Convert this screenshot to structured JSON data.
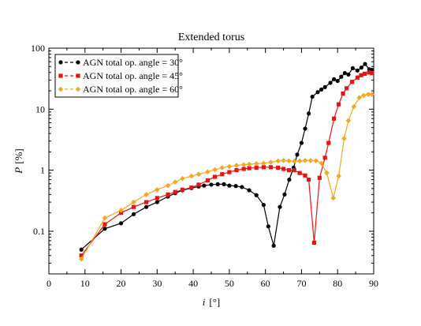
{
  "chart_data": {
    "type": "line",
    "title": "Extended torus",
    "xlabel_italic": "i",
    "xlabel_unit": "[°]",
    "ylabel_italic": "P",
    "ylabel_unit": "[%]",
    "xlim": [
      0,
      90
    ],
    "ylim": [
      0.02,
      100
    ],
    "yscale": "log",
    "grid": false,
    "legend_position": "top-left",
    "x_ticks": [
      "0",
      "10",
      "20",
      "30",
      "40",
      "50",
      "60",
      "70",
      "80",
      "90"
    ],
    "y_ticks": [
      "0.1",
      "1",
      "10",
      "100"
    ],
    "series": [
      {
        "name": "AGN total op. angle = 30°",
        "color": "#000000",
        "marker": "circle",
        "x": [
          9,
          15.5,
          20,
          23.5,
          27,
          30,
          33,
          35,
          37,
          39.5,
          41.5,
          43,
          45,
          46.8,
          48.5,
          50,
          51.8,
          53.5,
          55.5,
          57.5,
          59.5,
          60.8,
          62.3,
          64,
          65.3,
          66.6,
          67.8,
          68.8,
          70,
          71,
          72,
          73,
          74.5,
          75.5,
          76.5,
          78,
          79,
          80,
          81,
          82,
          83,
          84.2,
          85.5,
          86.6,
          87.6,
          88.8,
          89.5
        ],
        "y": [
          0.05,
          0.11,
          0.135,
          0.19,
          0.25,
          0.3,
          0.37,
          0.42,
          0.47,
          0.51,
          0.54,
          0.56,
          0.58,
          0.59,
          0.59,
          0.56,
          0.55,
          0.53,
          0.47,
          0.39,
          0.27,
          0.12,
          0.058,
          0.25,
          0.4,
          0.7,
          1.1,
          1.8,
          2.8,
          4.8,
          8.5,
          16,
          19,
          21,
          23,
          27,
          31,
          29,
          34,
          39,
          37,
          47,
          43,
          48,
          55,
          45,
          44
        ]
      },
      {
        "name": "AGN total op. angle = 45°",
        "color": "#ee1111",
        "marker": "square",
        "x": [
          9,
          15.5,
          20,
          23.5,
          27,
          30,
          33,
          35,
          37,
          39.5,
          41.5,
          44,
          46,
          48,
          50,
          52,
          54,
          55.5,
          57.5,
          59.5,
          61.5,
          63.5,
          65,
          66.5,
          68,
          69.5,
          71,
          72,
          73.5,
          75,
          76.5,
          77.5,
          79,
          80.3,
          81.5,
          82.5,
          84,
          85.5,
          86.5,
          87.5,
          88.7,
          89.5
        ],
        "y": [
          0.04,
          0.13,
          0.2,
          0.25,
          0.3,
          0.35,
          0.4,
          0.44,
          0.48,
          0.52,
          0.58,
          0.68,
          0.78,
          0.86,
          0.93,
          1.0,
          1.05,
          1.08,
          1.1,
          1.12,
          1.12,
          1.1,
          1.05,
          1.0,
          1.0,
          0.9,
          0.82,
          0.7,
          0.065,
          0.75,
          1.6,
          2.8,
          7,
          12,
          18,
          22,
          28,
          33,
          36,
          38,
          40,
          39
        ]
      },
      {
        "name": "AGN total op. angle = 60°",
        "color": "#f5a623",
        "marker": "diamond",
        "x": [
          9,
          15.5,
          20,
          23.5,
          27,
          30,
          33,
          35,
          37,
          39.5,
          41.5,
          44,
          46,
          48,
          50,
          52,
          54,
          55.5,
          57.5,
          59.5,
          61.5,
          63.5,
          65,
          66.5,
          68,
          69.5,
          71,
          72.5,
          74,
          75.5,
          77,
          78.8,
          80.3,
          81.8,
          83,
          84.5,
          86,
          87.2,
          88.5,
          89.5
        ],
        "y": [
          0.035,
          0.165,
          0.22,
          0.3,
          0.4,
          0.48,
          0.56,
          0.64,
          0.73,
          0.8,
          0.86,
          0.94,
          1.02,
          1.1,
          1.15,
          1.2,
          1.23,
          1.25,
          1.28,
          1.3,
          1.35,
          1.42,
          1.44,
          1.42,
          1.4,
          1.42,
          1.44,
          1.44,
          1.43,
          1.3,
          0.9,
          0.35,
          0.8,
          3.3,
          6.5,
          11,
          15.5,
          16.8,
          17.5,
          17.5
        ]
      }
    ]
  }
}
